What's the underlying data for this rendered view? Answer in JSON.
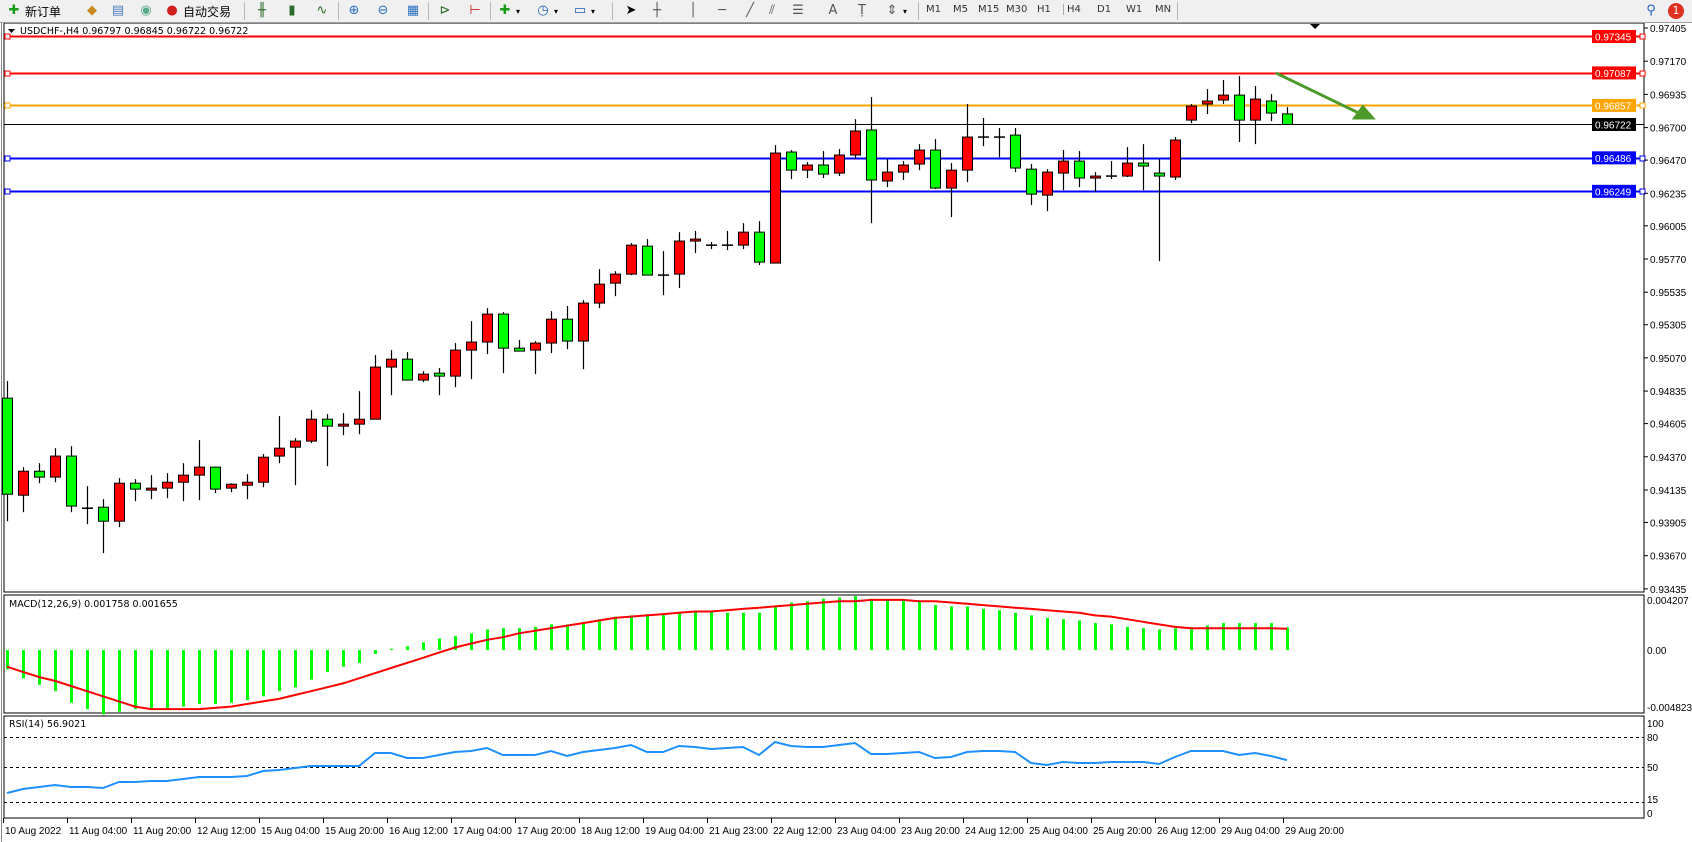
{
  "toolbar": {
    "new_order": "新订单",
    "auto_trading": "自动交易",
    "timeframes": [
      "M1",
      "M5",
      "M15",
      "M30",
      "H1",
      "H4",
      "D1",
      "W1",
      "MN"
    ],
    "selected_timeframe": "H4",
    "notification_count": "1",
    "icons": [
      "new-order-icon",
      "history-icon",
      "market-watch-icon",
      "signal-icon",
      "auto-trading-icon",
      "bar-chart-icon",
      "candlestick-icon",
      "line-chart-icon",
      "zoom-in-icon",
      "zoom-out-icon",
      "tile-windows-icon",
      "chart-shift-icon",
      "auto-scroll-icon",
      "new-chart-icon",
      "clock-icon",
      "template-icon",
      "cursor-icon",
      "crosshair-icon",
      "vertical-line-icon",
      "horizontal-line-icon",
      "trendline-icon",
      "channel-icon",
      "fibonacci-icon",
      "text-icon",
      "text-label-icon",
      "arrows-icon",
      "search-icon",
      "notification-icon"
    ]
  },
  "chart_header": "USDCHF-,H4  0.96797 0.96845 0.96722 0.96722",
  "chart_data": [
    {
      "type": "candlestick",
      "symbol": "USDCHF-",
      "timeframe": "H4",
      "colors": {
        "bull": "#ff0000",
        "bear": "#00ff00",
        "outline": "#000000"
      },
      "ylim": [
        0.93435,
        0.97405
      ],
      "y_ticks": [
        "0.97405",
        "0.97170",
        "0.96935",
        "0.96700",
        "0.96470",
        "0.96235",
        "0.96005",
        "0.95770",
        "0.95535",
        "0.95305",
        "0.95070",
        "0.94835",
        "0.94605",
        "0.94370",
        "0.94135",
        "0.93905",
        "0.93670",
        "0.93435"
      ],
      "x_tick_labels": [
        "10 Aug 2022",
        "11 Aug 04:00",
        "11 Aug 20:00",
        "12 Aug 12:00",
        "15 Aug 04:00",
        "15 Aug 20:00",
        "16 Aug 12:00",
        "17 Aug 04:00",
        "17 Aug 20:00",
        "18 Aug 12:00",
        "19 Aug 04:00",
        "21 Aug 23:00",
        "22 Aug 12:00",
        "23 Aug 04:00",
        "23 Aug 20:00",
        "24 Aug 12:00",
        "25 Aug 04:00",
        "25 Aug 20:00",
        "26 Aug 12:00",
        "29 Aug 04:00",
        "29 Aug 20:00"
      ],
      "x_tick_every_n_bars": 4,
      "ohlc": [
        [
          0.94785,
          0.94906,
          0.93914,
          0.94105
        ],
        [
          0.94098,
          0.94297,
          0.93978,
          0.94268
        ],
        [
          0.94268,
          0.94325,
          0.94183,
          0.94226
        ],
        [
          0.94226,
          0.94431,
          0.9419,
          0.94375
        ],
        [
          0.94375,
          0.94445,
          0.93978,
          0.94021
        ],
        [
          0.94006,
          0.94162,
          0.93893,
          0.94006
        ],
        [
          0.94013,
          0.9407,
          0.93688,
          0.93914
        ],
        [
          0.93914,
          0.94219,
          0.93872,
          0.94183
        ],
        [
          0.94183,
          0.94212,
          0.94056,
          0.94141
        ],
        [
          0.94134,
          0.9424,
          0.9407,
          0.94148
        ],
        [
          0.94148,
          0.94254,
          0.94077,
          0.9419
        ],
        [
          0.9419,
          0.94325,
          0.94056,
          0.9424
        ],
        [
          0.9424,
          0.94488,
          0.94063,
          0.94297
        ],
        [
          0.94297,
          0.94297,
          0.94113,
          0.94141
        ],
        [
          0.94148,
          0.94183,
          0.9412,
          0.94176
        ],
        [
          0.94169,
          0.94247,
          0.9407,
          0.9419
        ],
        [
          0.9419,
          0.94389,
          0.94155,
          0.94367
        ],
        [
          0.94375,
          0.94658,
          0.94325,
          0.94431
        ],
        [
          0.94438,
          0.94502,
          0.94169,
          0.94481
        ],
        [
          0.94481,
          0.947,
          0.94467,
          0.94636
        ],
        [
          0.94636,
          0.94672,
          0.94304,
          0.94587
        ],
        [
          0.94587,
          0.94679,
          0.94523,
          0.94601
        ],
        [
          0.94601,
          0.94835,
          0.9453,
          0.94636
        ],
        [
          0.94636,
          0.9509,
          0.94636,
          0.95005
        ],
        [
          0.95005,
          0.95125,
          0.94806,
          0.95061
        ],
        [
          0.95061,
          0.95111,
          0.94913,
          0.94913
        ],
        [
          0.94913,
          0.94976,
          0.94898,
          0.94955
        ],
        [
          0.94962,
          0.94998,
          0.94806,
          0.94941
        ],
        [
          0.94941,
          0.95175,
          0.94863,
          0.95125
        ],
        [
          0.95125,
          0.9533,
          0.9492,
          0.95182
        ],
        [
          0.95182,
          0.95422,
          0.95097,
          0.9538
        ],
        [
          0.9538,
          0.95394,
          0.94962,
          0.95139
        ],
        [
          0.95139,
          0.95196,
          0.95118,
          0.95118
        ],
        [
          0.95125,
          0.95189,
          0.94955,
          0.95175
        ],
        [
          0.95175,
          0.95401,
          0.95104,
          0.95344
        ],
        [
          0.95344,
          0.95437,
          0.95132,
          0.95189
        ],
        [
          0.95189,
          0.95479,
          0.9499,
          0.95458
        ],
        [
          0.95458,
          0.95698,
          0.95422,
          0.95592
        ],
        [
          0.95599,
          0.95684,
          0.95507,
          0.95663
        ],
        [
          0.95663,
          0.95883,
          0.95656,
          0.95868
        ],
        [
          0.95861,
          0.95911,
          0.95656,
          0.95656
        ],
        [
          0.95656,
          0.95826,
          0.95514,
          0.95656
        ],
        [
          0.95663,
          0.9596,
          0.95564,
          0.95897
        ],
        [
          0.95897,
          0.95968,
          0.95812,
          0.95911
        ],
        [
          0.95868,
          0.9589,
          0.9584,
          0.95868
        ],
        [
          0.95868,
          0.95968,
          0.95833,
          0.95868
        ],
        [
          0.95868,
          0.96024,
          0.9584,
          0.9596
        ],
        [
          0.9596,
          0.96038,
          0.95727,
          0.95748
        ],
        [
          0.95741,
          0.96576,
          0.95741,
          0.9652
        ],
        [
          0.96527,
          0.96541,
          0.96336,
          0.96399
        ],
        [
          0.96399,
          0.96456,
          0.96343,
          0.96435
        ],
        [
          0.96435,
          0.96534,
          0.96343,
          0.96371
        ],
        [
          0.96378,
          0.96548,
          0.96357,
          0.96506
        ],
        [
          0.96506,
          0.9676,
          0.96477,
          0.96676
        ],
        [
          0.96683,
          0.96916,
          0.96024,
          0.96329
        ],
        [
          0.96322,
          0.96477,
          0.96279,
          0.96385
        ],
        [
          0.96385,
          0.96463,
          0.96329,
          0.96435
        ],
        [
          0.96442,
          0.96583,
          0.96399,
          0.96541
        ],
        [
          0.96541,
          0.96619,
          0.96265,
          0.96272
        ],
        [
          0.96272,
          0.96449,
          0.96067,
          0.96399
        ],
        [
          0.96399,
          0.96867,
          0.96314,
          0.96633
        ],
        [
          0.96633,
          0.96768,
          0.96569,
          0.96633
        ],
        [
          0.96633,
          0.96697,
          0.96491,
          0.96633
        ],
        [
          0.96647,
          0.96697,
          0.96385,
          0.96414
        ],
        [
          0.96406,
          0.96442,
          0.96152,
          0.96229
        ],
        [
          0.96222,
          0.96406,
          0.96109,
          0.96385
        ],
        [
          0.96378,
          0.96541,
          0.96258,
          0.96463
        ],
        [
          0.96463,
          0.96534,
          0.96279,
          0.96343
        ],
        [
          0.96343,
          0.96385,
          0.96244,
          0.96357
        ],
        [
          0.96357,
          0.96463,
          0.96336,
          0.96357
        ],
        [
          0.96357,
          0.96562,
          0.9635,
          0.96449
        ],
        [
          0.96449,
          0.96583,
          0.96258,
          0.96428
        ],
        [
          0.96378,
          0.96477,
          0.95755,
          0.96357
        ],
        [
          0.9635,
          0.96633,
          0.96329,
          0.96612
        ],
        [
          0.96753,
          0.96867,
          0.96732,
          0.96853
        ],
        [
          0.96867,
          0.96973,
          0.96796,
          0.96888
        ],
        [
          0.96895,
          0.97037,
          0.96867,
          0.9693
        ],
        [
          0.9693,
          0.97065,
          0.96598,
          0.96753
        ],
        [
          0.96753,
          0.96994,
          0.96583,
          0.96902
        ],
        [
          0.96888,
          0.96937,
          0.96746,
          0.96803
        ],
        [
          0.96797,
          0.96845,
          0.96722,
          0.96722
        ]
      ],
      "horizontal_lines": [
        {
          "price": 0.97345,
          "label": "0.97345",
          "color": "#ff0000"
        },
        {
          "price": 0.97087,
          "label": "0.97087",
          "color": "#ff0000"
        },
        {
          "price": 0.96857,
          "label": "0.96857",
          "color": "#ffa500"
        },
        {
          "price": 0.96722,
          "label": "0.96722",
          "color": "#000000",
          "current_price": true
        },
        {
          "price": 0.96486,
          "label": "0.96486",
          "color": "#0000ff"
        },
        {
          "price": 0.96249,
          "label": "0.96249",
          "color": "#0000ff"
        }
      ],
      "annotation_arrow": {
        "color": "#4c9a2a",
        "from": {
          "bar": 79.3,
          "price": 0.97087
        },
        "to": {
          "bar": 85.3,
          "price": 0.96757
        }
      }
    },
    {
      "type": "bar+line",
      "title": "MACD(12,26,9) 0.001758 0.001655",
      "ylim": [
        -0.004823,
        0.004207
      ],
      "y_ticks": [
        "0.004207",
        "0.00",
        "-0.004823"
      ],
      "colors": {
        "histogram": "#00ff00",
        "signal": "#ff0000"
      },
      "histogram": [
        -0.0015,
        -0.0022,
        -0.0027,
        -0.0032,
        -0.0041,
        -0.0046,
        -0.005,
        -0.0048,
        -0.0046,
        -0.0046,
        -0.0046,
        -0.0044,
        -0.0042,
        -0.0042,
        -0.0041,
        -0.0039,
        -0.0036,
        -0.0032,
        -0.0029,
        -0.0023,
        -0.0017,
        -0.0013,
        -0.001,
        -0.0003,
        0.0001,
        0.0003,
        0.0006,
        0.0009,
        0.0011,
        0.0013,
        0.0016,
        0.0017,
        0.0017,
        0.0018,
        0.002,
        0.002,
        0.0022,
        0.0024,
        0.0026,
        0.0027,
        0.0028,
        0.0028,
        0.0029,
        0.003,
        0.003,
        0.0029,
        0.0029,
        0.0029,
        0.0034,
        0.0037,
        0.0038,
        0.004,
        0.0041,
        0.0042,
        0.004,
        0.0039,
        0.0039,
        0.0038,
        0.0035,
        0.0034,
        0.0034,
        0.0032,
        0.0031,
        0.0029,
        0.0027,
        0.0025,
        0.0024,
        0.0023,
        0.0021,
        0.002,
        0.0018,
        0.0017,
        0.0016,
        0.0017,
        0.0018,
        0.0019,
        0.0021,
        0.0021,
        0.0021,
        0.0021,
        0.001758
      ],
      "signal": [
        -0.0013,
        -0.0017,
        -0.0021,
        -0.0024,
        -0.0028,
        -0.0032,
        -0.0036,
        -0.004,
        -0.0044,
        -0.0046,
        -0.0046,
        -0.0046,
        -0.0046,
        -0.0045,
        -0.0044,
        -0.0042,
        -0.004,
        -0.0038,
        -0.0035,
        -0.0032,
        -0.0029,
        -0.0026,
        -0.0022,
        -0.0018,
        -0.0014,
        -0.001,
        -0.0006,
        -0.0002,
        0.0002,
        0.0005,
        0.0008,
        0.001,
        0.0013,
        0.0015,
        0.0017,
        0.0019,
        0.0021,
        0.0023,
        0.0025,
        0.0026,
        0.0027,
        0.0028,
        0.0029,
        0.003,
        0.003,
        0.0031,
        0.0032,
        0.0033,
        0.0034,
        0.0035,
        0.0036,
        0.0037,
        0.0038,
        0.0038,
        0.0039,
        0.0039,
        0.0039,
        0.0038,
        0.0038,
        0.0037,
        0.0036,
        0.0035,
        0.0034,
        0.0033,
        0.0032,
        0.0031,
        0.003,
        0.0029,
        0.0027,
        0.0026,
        0.0024,
        0.0022,
        0.002,
        0.0018,
        0.0017,
        0.0017,
        0.0017,
        0.0017,
        0.0017,
        0.0017,
        0.001655
      ]
    },
    {
      "type": "line",
      "title": "RSI(14) 56.9021",
      "ylim": [
        0,
        100
      ],
      "y_ticks": [
        "100",
        "80",
        "50",
        "15",
        "0"
      ],
      "levels": [
        80,
        50,
        15
      ],
      "color": "#1e90ff",
      "values": [
        24,
        28,
        30,
        32,
        30,
        30,
        29,
        35,
        35,
        36,
        36,
        38,
        40,
        40,
        40,
        41,
        46,
        47,
        49,
        51,
        51,
        51,
        51,
        64,
        64,
        59,
        59,
        62,
        65,
        66,
        69,
        62,
        62,
        62,
        66,
        61,
        65,
        67,
        69,
        72,
        65,
        65,
        71,
        70,
        68,
        69,
        70,
        62,
        75,
        71,
        70,
        70,
        72,
        74,
        63,
        63,
        64,
        65,
        59,
        60,
        65,
        66,
        66,
        65,
        54,
        52,
        55,
        54,
        54,
        55,
        55,
        55,
        53,
        60,
        66,
        66,
        66,
        62,
        64,
        61,
        56.9021
      ]
    }
  ]
}
